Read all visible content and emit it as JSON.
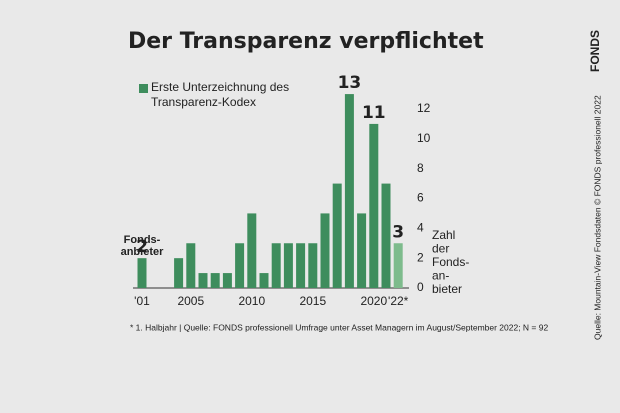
{
  "chart_data": {
    "type": "bar",
    "title": "Der Transparenz verpflichtet",
    "legend": "Erste Unterzeichnung des Transparenz-Kodex",
    "categories": [
      "'01",
      null,
      null,
      null,
      "2005",
      null,
      null,
      null,
      null,
      "2010",
      null,
      null,
      null,
      null,
      "2015",
      null,
      null,
      null,
      null,
      "2020",
      null,
      "'22*"
    ],
    "values": [
      2,
      0,
      0,
      2,
      3,
      1,
      1,
      1,
      3,
      5,
      1,
      3,
      3,
      3,
      3,
      5,
      7,
      13,
      5,
      11,
      7,
      3
    ],
    "value_labels": [
      "2",
      null,
      null,
      null,
      null,
      null,
      null,
      null,
      null,
      null,
      null,
      null,
      null,
      null,
      null,
      null,
      null,
      "13",
      null,
      "11",
      null,
      "3"
    ],
    "color": "#3e8d5d",
    "bar_colors": [
      "#3e8d5d",
      "#3e8d5d",
      "#3e8d5d",
      "#3e8d5d",
      "#3e8d5d",
      "#3e8d5d",
      "#3e8d5d",
      "#3e8d5d",
      "#3e8d5d",
      "#3e8d5d",
      "#3e8d5d",
      "#3e8d5d",
      "#3e8d5d",
      "#3e8d5d",
      "#3e8d5d",
      "#3e8d5d",
      "#3e8d5d",
      "#3e8d5d",
      "#3e8d5d",
      "#3e8d5d",
      "#3e8d5d",
      "#7dbb8c"
    ],
    "annotation": [
      "Fonds-",
      "anbieter"
    ],
    "ylabel": [
      "Zahl",
      "der",
      "Fonds-",
      "an-",
      "bieter"
    ],
    "ylim": [
      0,
      12
    ],
    "yticks": [
      0,
      2,
      4,
      6,
      8,
      10,
      12
    ],
    "grid": false,
    "footnote": "* 1. Halbjahr | Quelle: FONDS professionell Umfrage unter Asset Managern im August/September 2022; N = 92",
    "source": "Quelle: Mountain-View Fondsdaten  © FONDS professionell 2022",
    "logo": "FONDS"
  }
}
